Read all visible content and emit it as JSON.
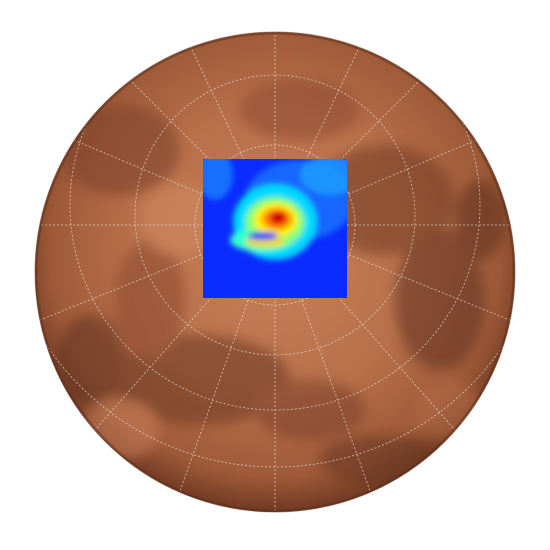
{
  "map": {
    "projection": "orthographic",
    "view": "polar",
    "body": "planet",
    "graticule": {
      "visible": true,
      "style": "dotted",
      "color": "#d9d9d9"
    },
    "colors": {
      "surface_light": "#c97c52",
      "surface_mid": "#a9623f",
      "surface_dark": "#6e3b24",
      "surface_edge": "#5a2e1c",
      "background": "#ffffff"
    },
    "overlay": {
      "type": "heatmap",
      "colormap": "jet",
      "colormap_stops": [
        "#00007f",
        "#0000ff",
        "#007fff",
        "#00ffff",
        "#7fff7f",
        "#ffff00",
        "#ff7f00",
        "#ff0000",
        "#7f0000"
      ],
      "features": [
        {
          "kind": "peak",
          "intensity": 1.0
        },
        {
          "kind": "arm",
          "intensity": 0.55
        },
        {
          "kind": "ring",
          "intensity": 0.4
        }
      ]
    }
  }
}
